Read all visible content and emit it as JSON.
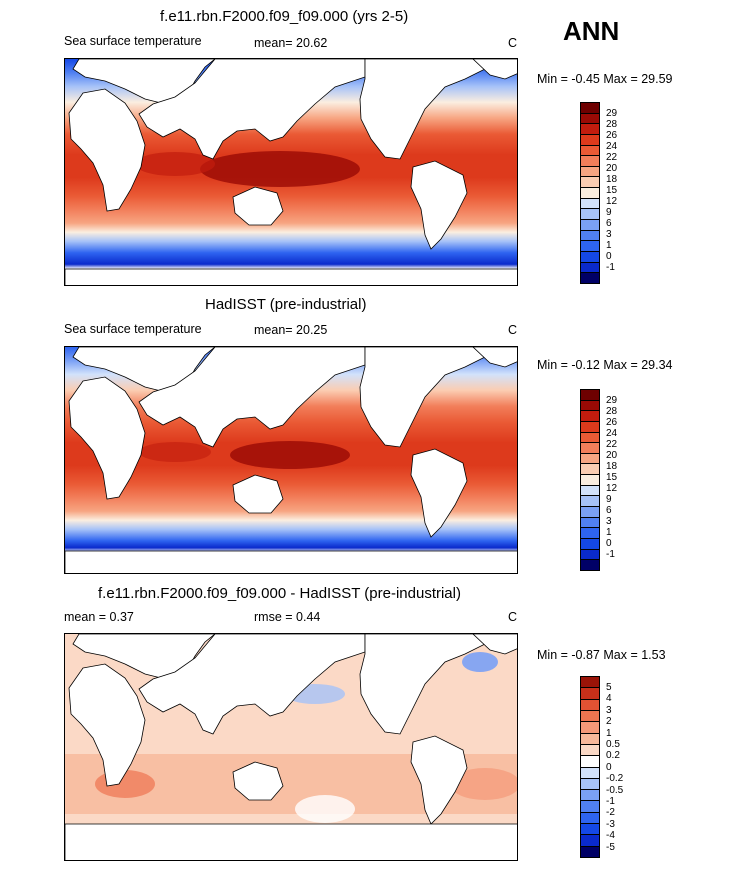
{
  "season": "ANN",
  "colors": {
    "abs": [
      "#000066",
      "#0a2acc",
      "#1448e6",
      "#2e64f0",
      "#5080f2",
      "#7aa0f5",
      "#a6c2f8",
      "#d2e2fb",
      "#fbeee0",
      "#fbcdb2",
      "#f7a582",
      "#f27e5a",
      "#ea5a35",
      "#dd3a1c",
      "#c21c0e",
      "#9a0a05",
      "#6e0000"
    ],
    "diff": [
      "#000066",
      "#0a2acc",
      "#1448e6",
      "#2e64f0",
      "#5080f2",
      "#7aa0f5",
      "#a6c2f8",
      "#d2e2fb",
      "#ffffff",
      "#fbd9c6",
      "#f8b89a",
      "#f59878",
      "#ee7450",
      "#e25233",
      "#c8301a",
      "#9a1408"
    ]
  },
  "panels": [
    {
      "title": "f.e11.rbn.F2000.f09_f09.000 (yrs 2-5)",
      "variable": "Sea surface temperature",
      "stat1": "mean=  20.62",
      "stat2": "",
      "units": "C",
      "minmax": "Min =  -0.45 Max =  29.59",
      "ticks": [
        "29",
        "28",
        "26",
        "24",
        "22",
        "20",
        "18",
        "15",
        "12",
        "9",
        "6",
        "3",
        "1",
        "0",
        "-1"
      ]
    },
    {
      "title": "HadISST (pre-industrial)",
      "variable": "Sea surface temperature",
      "stat1": "mean=  20.25",
      "stat2": "",
      "units": "C",
      "minmax": "Min =  -0.12 Max =  29.34",
      "ticks": [
        "29",
        "28",
        "26",
        "24",
        "22",
        "20",
        "18",
        "15",
        "12",
        "9",
        "6",
        "3",
        "1",
        "0",
        "-1"
      ]
    },
    {
      "title": "f.e11.rbn.F2000.f09_f09.000 - HadISST (pre-industrial)",
      "variable": "",
      "stat1": "mean =   0.37",
      "stat2": "rmse =   0.44",
      "units": "C",
      "minmax": "Min =  -0.87 Max =   1.53",
      "ticks": [
        "5",
        "4",
        "3",
        "2",
        "1",
        "0.5",
        "0.2",
        "0",
        "-0.2",
        "-0.5",
        "-1",
        "-2",
        "-3",
        "-4",
        "-5"
      ]
    }
  ]
}
